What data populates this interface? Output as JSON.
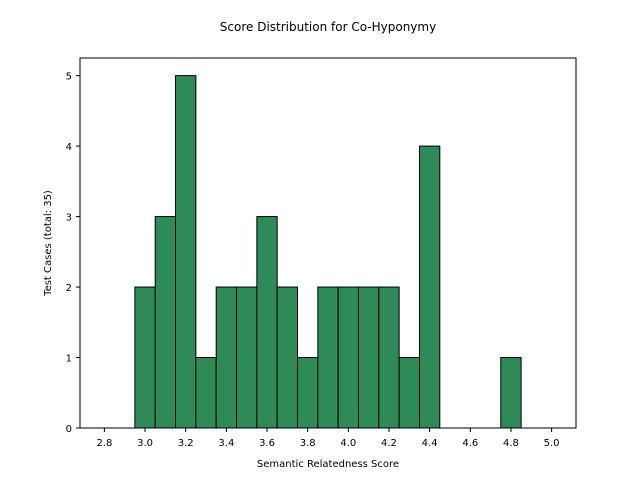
{
  "chart_data": {
    "type": "bar",
    "title": "Score Distribution for Co-Hyponymy",
    "xlabel": "Semantic Relatedness Score",
    "ylabel": "Test Cases (total: 35)",
    "bin_width": 0.1,
    "x": [
      3.0,
      3.1,
      3.2,
      3.3,
      3.4,
      3.5,
      3.6,
      3.7,
      3.8,
      3.9,
      4.0,
      4.1,
      4.2,
      4.3,
      4.4,
      4.8
    ],
    "values": [
      2,
      3,
      5,
      1,
      2,
      2,
      3,
      2,
      1,
      2,
      2,
      2,
      2,
      1,
      4,
      1
    ],
    "xlim": [
      2.68,
      5.12
    ],
    "ylim": [
      0,
      5.25
    ],
    "xticks": [
      "2.8",
      "3.0",
      "3.2",
      "3.4",
      "3.6",
      "3.8",
      "4.0",
      "4.2",
      "4.4",
      "4.6",
      "4.8",
      "5.0"
    ],
    "yticks": [
      "0",
      "1",
      "2",
      "3",
      "4",
      "5"
    ],
    "bar_color": "#2e8b57",
    "edge_color": "#000000",
    "grid": false
  }
}
